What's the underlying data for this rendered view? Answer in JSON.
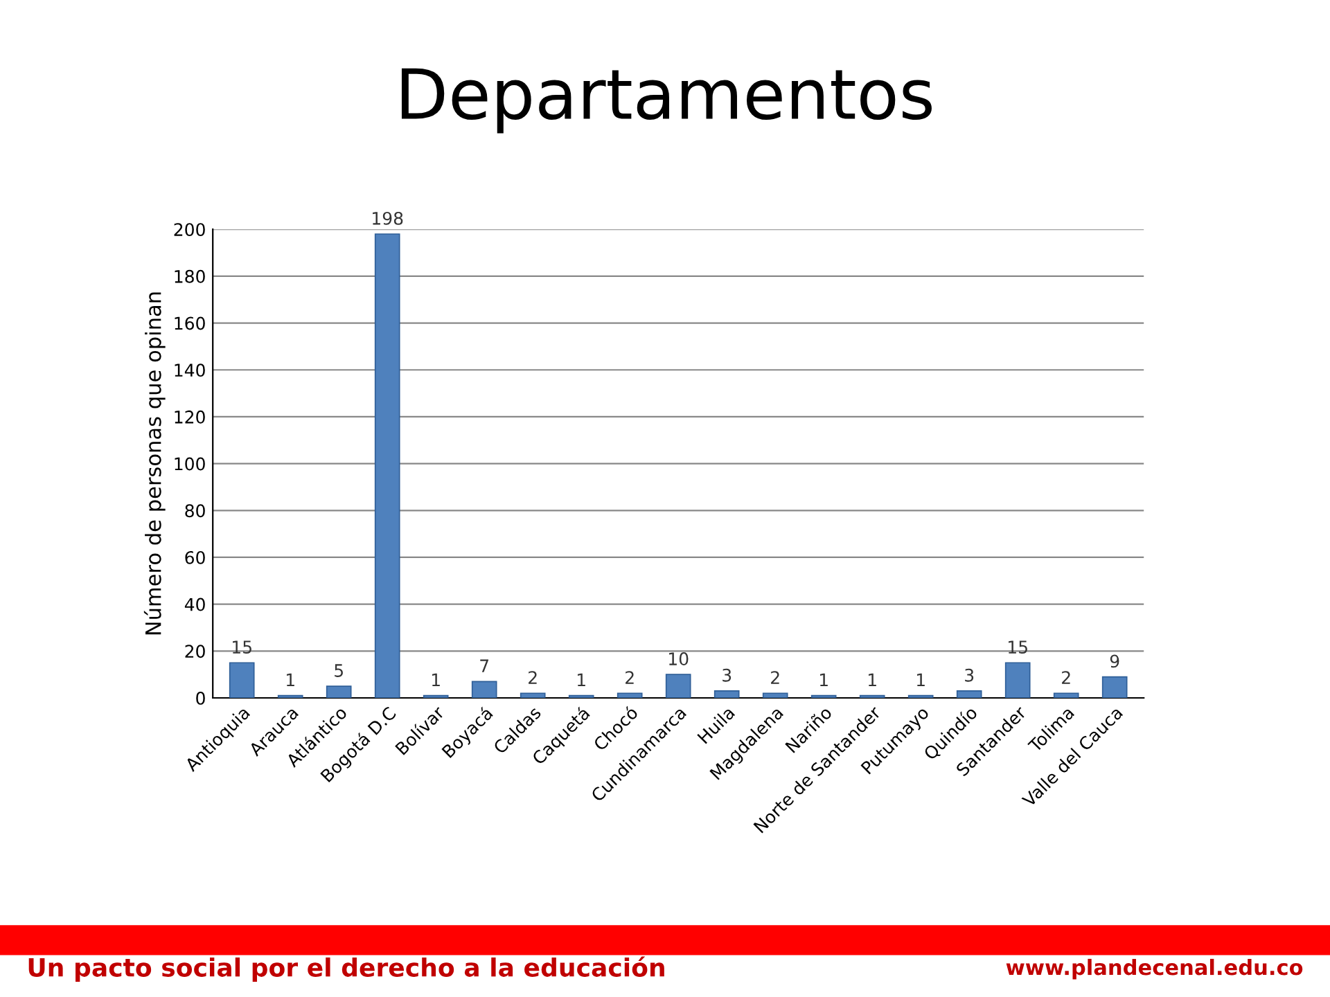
{
  "chart_data": {
    "type": "bar",
    "title": "Departamentos",
    "ylabel": "Número de personas que opinan",
    "categories": [
      "Antioquia",
      "Arauca",
      "Atlántico",
      "Bogotá D.C",
      "Bolívar",
      "Boyacá",
      "Caldas",
      "Caquetá",
      "Chocó",
      "Cundinamarca",
      "Huila",
      "Magdalena",
      "Nariño",
      "Norte de Santander",
      "Putumayo",
      "Quindío",
      "Santander",
      "Tolima",
      "Valle del Cauca"
    ],
    "values": [
      15,
      1,
      5,
      198,
      1,
      7,
      2,
      1,
      2,
      10,
      3,
      2,
      1,
      1,
      1,
      3,
      15,
      2,
      9
    ],
    "color": "#4f81bd",
    "ylim": [
      0,
      200
    ],
    "yticks": [
      0,
      20,
      40,
      60,
      80,
      100,
      120,
      140,
      160,
      180,
      200
    ],
    "grid": "y",
    "data_labels": true,
    "annotations": [
      "Un pacto social por el derecho a la educación",
      "www.plandecenal.edu.co"
    ]
  }
}
